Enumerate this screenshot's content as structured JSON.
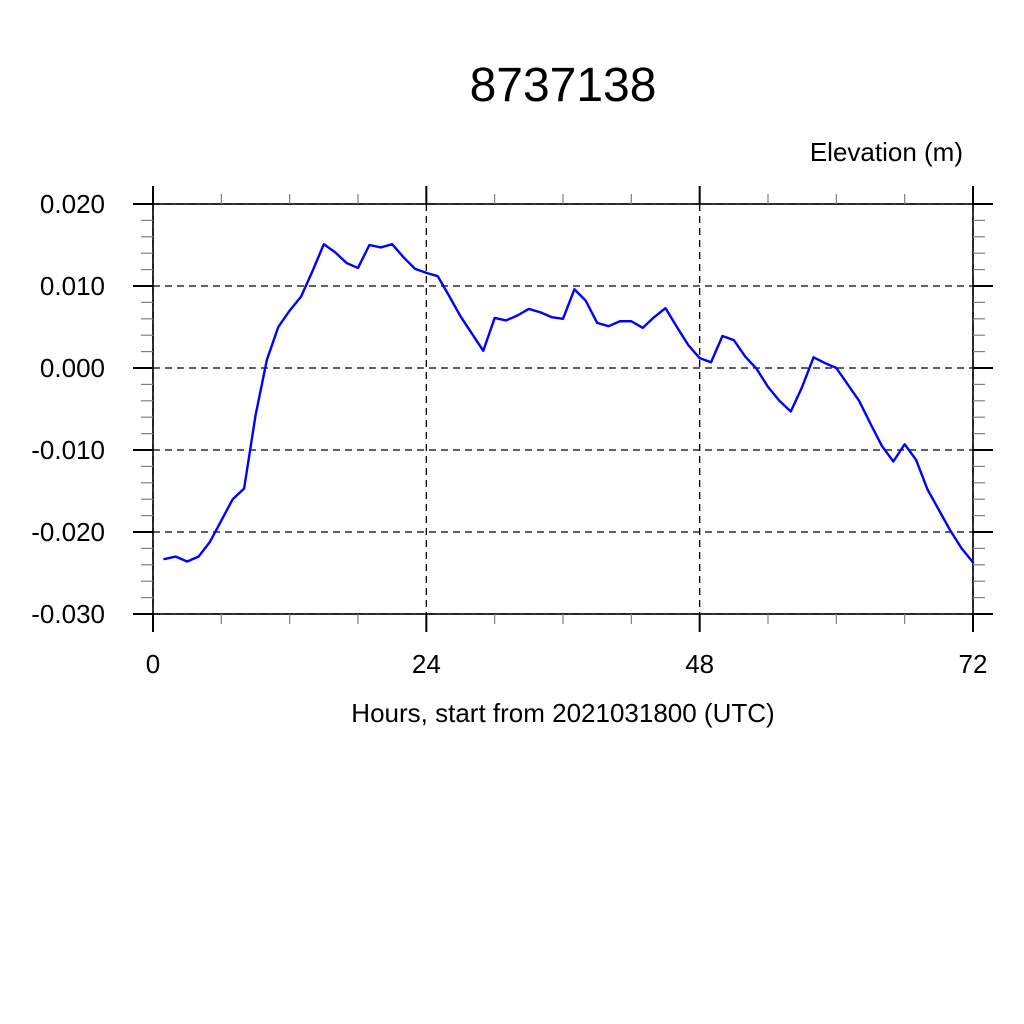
{
  "page": {
    "background": "#ffffff"
  },
  "chart_data": {
    "type": "line",
    "title": "8737138",
    "ylabel": "Elevation (m)",
    "xlabel": "Hours, start from 2021031800 (UTC)",
    "xlim": [
      0,
      72
    ],
    "ylim": [
      -0.03,
      0.02
    ],
    "xticks": [
      0,
      24,
      48,
      72
    ],
    "yticks": [
      0.02,
      0.01,
      0.0,
      -0.01,
      -0.02,
      -0.03
    ],
    "x_minor_step": 6,
    "y_minor_step": 0.002,
    "grid": "dashed lines at every major tick, mirrored outward ticks on all four axes",
    "legend_position": "none",
    "line_color": "#0000ff",
    "axis_color": "#000000",
    "minor_tick_color": "#808080",
    "series": [
      {
        "name": "Elevation (m)",
        "x": [
          1,
          2,
          3,
          4,
          5,
          6,
          7,
          8,
          9,
          10,
          11,
          12,
          13,
          14,
          15,
          16,
          17,
          18,
          19,
          20,
          21,
          22,
          23,
          24,
          25,
          26,
          27,
          28,
          29,
          30,
          31,
          32,
          33,
          34,
          35,
          36,
          37,
          38,
          39,
          40,
          41,
          42,
          43,
          44,
          45,
          46,
          47,
          48,
          49,
          50,
          51,
          52,
          53,
          54,
          55,
          56,
          57,
          58,
          59,
          60,
          61,
          62,
          63,
          64,
          65,
          66,
          67,
          68,
          69,
          70,
          71,
          72
        ],
        "y": [
          -0.0233,
          -0.023,
          -0.0236,
          -0.023,
          -0.0212,
          -0.0186,
          -0.016,
          -0.0147,
          -0.0058,
          0.001,
          0.005,
          0.007,
          0.0087,
          0.0118,
          0.0151,
          0.0141,
          0.0128,
          0.0122,
          0.015,
          0.0147,
          0.0151,
          0.0135,
          0.0121,
          0.0116,
          0.0112,
          0.0088,
          0.0063,
          0.0042,
          0.0021,
          0.0061,
          0.0058,
          0.0064,
          0.0072,
          0.0068,
          0.0062,
          0.006,
          0.0096,
          0.0082,
          0.0055,
          0.0051,
          0.0057,
          0.0057,
          0.0049,
          0.0062,
          0.0073,
          0.005,
          0.0028,
          0.0012,
          0.0007,
          0.0039,
          0.0034,
          0.0014,
          -0.0001,
          -0.0023,
          -0.004,
          -0.0053,
          -0.0023,
          0.0013,
          0.0006,
          0.0,
          -0.002,
          -0.004,
          -0.0068,
          -0.0095,
          -0.0114,
          -0.0093,
          -0.0112,
          -0.0148,
          -0.0173,
          -0.0198,
          -0.022,
          -0.0237
        ]
      }
    ]
  }
}
